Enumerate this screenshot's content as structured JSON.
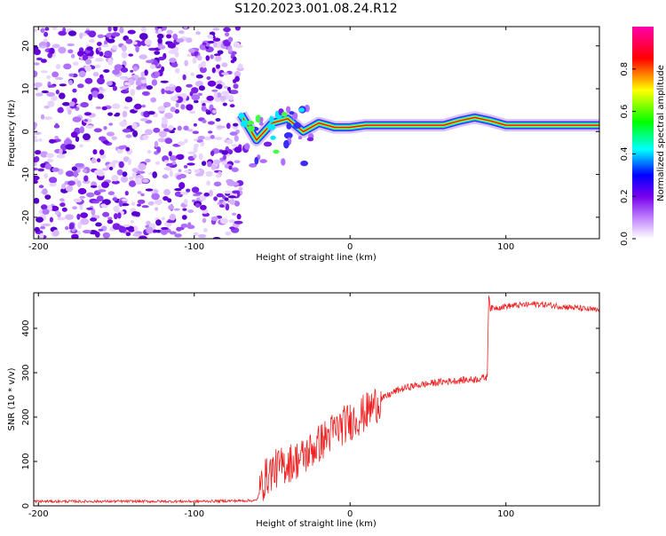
{
  "title": "S120.2023.001.08.24.R12",
  "chart_data": [
    {
      "type": "heatmap",
      "xlabel": "Height of straight line (km)",
      "ylabel": "Frequency (Hz)",
      "xlim": [
        -203,
        160
      ],
      "ylim": [
        -25,
        24.5
      ],
      "xticks": [
        -200,
        -100,
        0,
        100
      ],
      "yticks": [
        -20,
        -10,
        0,
        10,
        20
      ],
      "colorbar": {
        "label": "Normalized spectral amplitude",
        "range": [
          0,
          1
        ],
        "ticks": [
          0.0,
          0.2,
          0.4,
          0.6,
          0.8
        ],
        "colors": [
          "#ffffff",
          "#cc99ff",
          "#7700ee",
          "#0000ff",
          "#00ffff",
          "#00ff00",
          "#ffff00",
          "#ff0000",
          "#ff00aa"
        ]
      },
      "noise_region_x": [
        -203,
        -70
      ],
      "signal_track": {
        "x": [
          -70,
          -60,
          -50,
          -40,
          -30,
          -20,
          -10,
          0,
          10,
          20,
          40,
          60,
          70,
          80,
          90,
          100,
          110,
          130,
          160
        ],
        "y": [
          4,
          -2,
          2,
          3,
          0,
          2,
          1,
          1,
          1.5,
          1.5,
          1.5,
          1.5,
          2.5,
          3.3,
          2.5,
          1.5,
          1.5,
          1.5,
          1.5
        ]
      }
    },
    {
      "type": "line",
      "xlabel": "Height of straight line (km)",
      "ylabel": "SNR (10 * v/v)",
      "xlim": [
        -203,
        160
      ],
      "ylim": [
        0,
        480
      ],
      "xticks": [
        -200,
        -100,
        0,
        100
      ],
      "yticks": [
        0,
        100,
        200,
        300,
        400
      ],
      "color": "#ee2222",
      "series": [
        {
          "x": [
            -203,
            -150,
            -100,
            -60,
            -55,
            -50,
            -40,
            -30,
            -20,
            -10,
            0,
            10,
            20,
            30,
            40,
            60,
            80,
            88,
            89,
            90,
            100,
            120,
            140,
            160
          ],
          "y": [
            10,
            10,
            10,
            12,
            60,
            80,
            95,
            110,
            140,
            170,
            190,
            210,
            240,
            260,
            270,
            280,
            285,
            290,
            480,
            445,
            450,
            455,
            448,
            440
          ]
        }
      ]
    }
  ]
}
